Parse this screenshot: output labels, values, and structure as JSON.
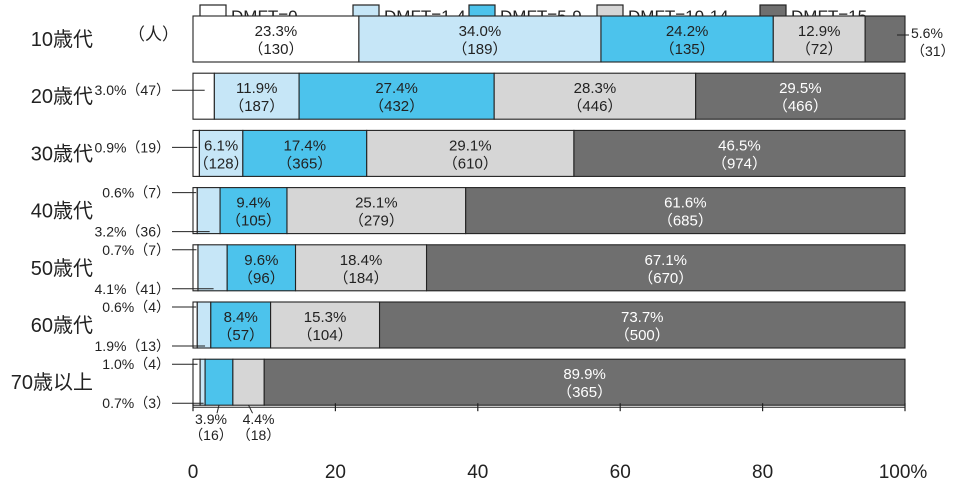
{
  "chart_data": {
    "type": "bar",
    "orientation": "horizontal",
    "stacked": true,
    "unit_label": "（人）",
    "xlim": [
      0,
      100
    ],
    "x_ticks": [
      "0",
      "20",
      "40",
      "60",
      "80",
      "100%"
    ],
    "legend": {
      "placement": "top",
      "entries": [
        "DMFT=0",
        "DMFT=1-4",
        "DMFT=5-9",
        "DMFT=10-14",
        "DMFT=15-"
      ]
    },
    "colors": [
      "#ffffff",
      "#c6e6f7",
      "#4cc3ec",
      "#d6d6d6",
      "#6f6f6f"
    ],
    "categories": [
      "10歳代",
      "20歳代",
      "30歳代",
      "40歳代",
      "50歳代",
      "60歳代",
      "70歳以上"
    ],
    "rows": [
      {
        "category": "10歳代",
        "pct": [
          23.3,
          34.0,
          24.2,
          12.9,
          5.6
        ],
        "labels": [
          [
            "23.3%",
            "（130）"
          ],
          [
            "34.0%",
            "（189）"
          ],
          [
            "24.2%",
            "（135）"
          ],
          [
            "12.9%",
            "（72）"
          ],
          [
            "5.6%",
            "（31）"
          ]
        ]
      },
      {
        "category": "20歳代",
        "pct": [
          3.0,
          11.9,
          27.4,
          28.3,
          29.5
        ],
        "labels": [
          [
            "3.0%（47）"
          ],
          [
            "11.9%",
            "（187）"
          ],
          [
            "27.4%",
            "（432）"
          ],
          [
            "28.3%",
            "（446）"
          ],
          [
            "29.5%",
            "（466）"
          ]
        ]
      },
      {
        "category": "30歳代",
        "pct": [
          0.9,
          6.1,
          17.4,
          29.1,
          46.5
        ],
        "labels": [
          [
            "0.9%（19）"
          ],
          [
            "6.1%",
            "（128）"
          ],
          [
            "17.4%",
            "（365）"
          ],
          [
            "29.1%",
            "（610）"
          ],
          [
            "46.5%",
            "（974）"
          ]
        ]
      },
      {
        "category": "40歳代",
        "pct": [
          0.6,
          3.2,
          9.4,
          25.1,
          61.6
        ],
        "labels": [
          [
            "0.6%（7）"
          ],
          [
            "3.2%（36）"
          ],
          [
            "9.4%",
            "（105）"
          ],
          [
            "25.1%",
            "（279）"
          ],
          [
            "61.6%",
            "（685）"
          ]
        ]
      },
      {
        "category": "50歳代",
        "pct": [
          0.7,
          4.1,
          9.6,
          18.4,
          67.1
        ],
        "labels": [
          [
            "0.7%（7）"
          ],
          [
            "4.1%（41）"
          ],
          [
            "9.6%",
            "（96）"
          ],
          [
            "18.4%",
            "（184）"
          ],
          [
            "67.1%",
            "（670）"
          ]
        ]
      },
      {
        "category": "60歳代",
        "pct": [
          0.6,
          1.9,
          8.4,
          15.3,
          73.7
        ],
        "labels": [
          [
            "0.6%（4）"
          ],
          [
            "1.9%（13）"
          ],
          [
            "8.4%",
            "（57）"
          ],
          [
            "15.3%",
            "（104）"
          ],
          [
            "73.7%",
            "（500）"
          ]
        ]
      },
      {
        "category": "70歳以上",
        "pct": [
          1.0,
          0.7,
          3.9,
          4.4,
          89.9
        ],
        "labels": [
          [
            "1.0%（4）"
          ],
          [
            "0.7%（3）"
          ],
          [
            "3.9%",
            "（16）"
          ],
          [
            "4.4%",
            "（18）"
          ],
          [
            "89.9%",
            "（365）"
          ]
        ]
      }
    ]
  }
}
